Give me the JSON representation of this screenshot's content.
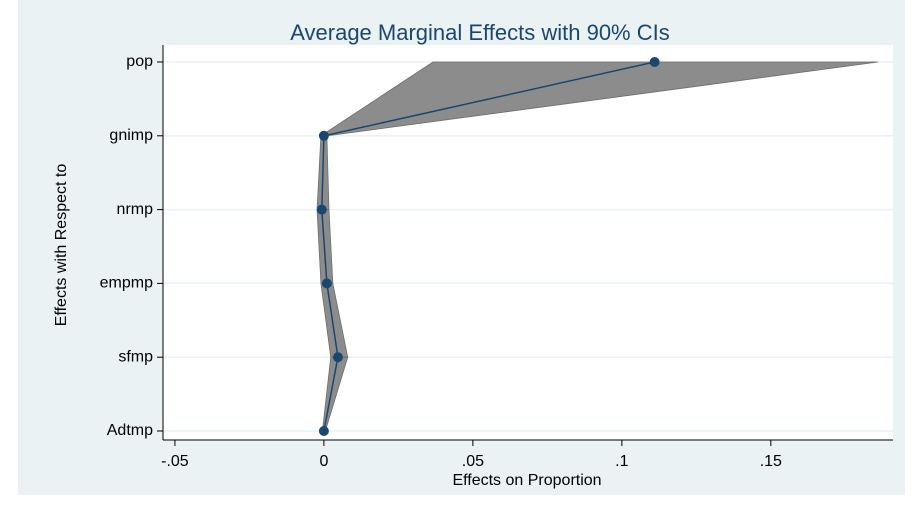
{
  "chart_data": {
    "type": "ci-plot",
    "title": "Average Marginal Effects with 90% CIs",
    "x_label": "Effects on Proportion",
    "y_label": "Effects with Respect to",
    "categories": [
      "pop",
      "gnimp",
      "nrmp",
      "empmp",
      "sfmp",
      "Adtmp"
    ],
    "values": [
      0.111,
      0,
      -0.0007,
      0.001,
      0.0047,
      0
    ],
    "lower": [
      0.0366,
      -0.001,
      -0.0023,
      -0.001,
      0.0023,
      -0.0005
    ],
    "upper": [
      0.186,
      0.001,
      0.0017,
      0.003,
      0.008,
      0.0005
    ],
    "color": "#1a476f",
    "band_color": "#8c8c8c",
    "xlim": [
      -0.054,
      0.191
    ],
    "xticks": [
      {
        "value": -0.05,
        "label": "-.05"
      },
      0,
      {
        "value": 0.05,
        "label": ".05"
      },
      {
        "value": 0.1,
        "label": ".1"
      },
      {
        "value": 0.15,
        "label": ".15"
      }
    ],
    "grid": true
  }
}
